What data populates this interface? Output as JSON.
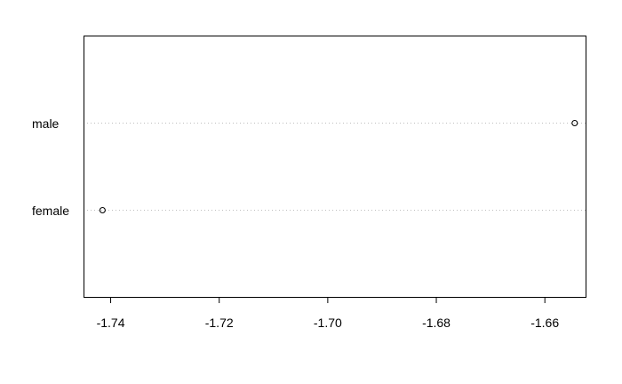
{
  "chart_data": {
    "type": "scatter",
    "subtype": "dotchart",
    "title": "",
    "xlabel": "",
    "ylabel": "",
    "categories": [
      "female",
      "male"
    ],
    "values": [
      -1.7415,
      -1.6545
    ],
    "xlim": [
      -1.745,
      -1.6525
    ],
    "xticks": [
      -1.74,
      -1.72,
      -1.7,
      -1.68,
      -1.66
    ],
    "xtick_labels": [
      "-1.74",
      "-1.72",
      "-1.70",
      "-1.68",
      "-1.66"
    ],
    "grid": "dotted horizontal guide lines per category",
    "legend": "none",
    "colors": {
      "point": "#000000",
      "guide": "#bebebe",
      "axis": "#000000"
    }
  }
}
